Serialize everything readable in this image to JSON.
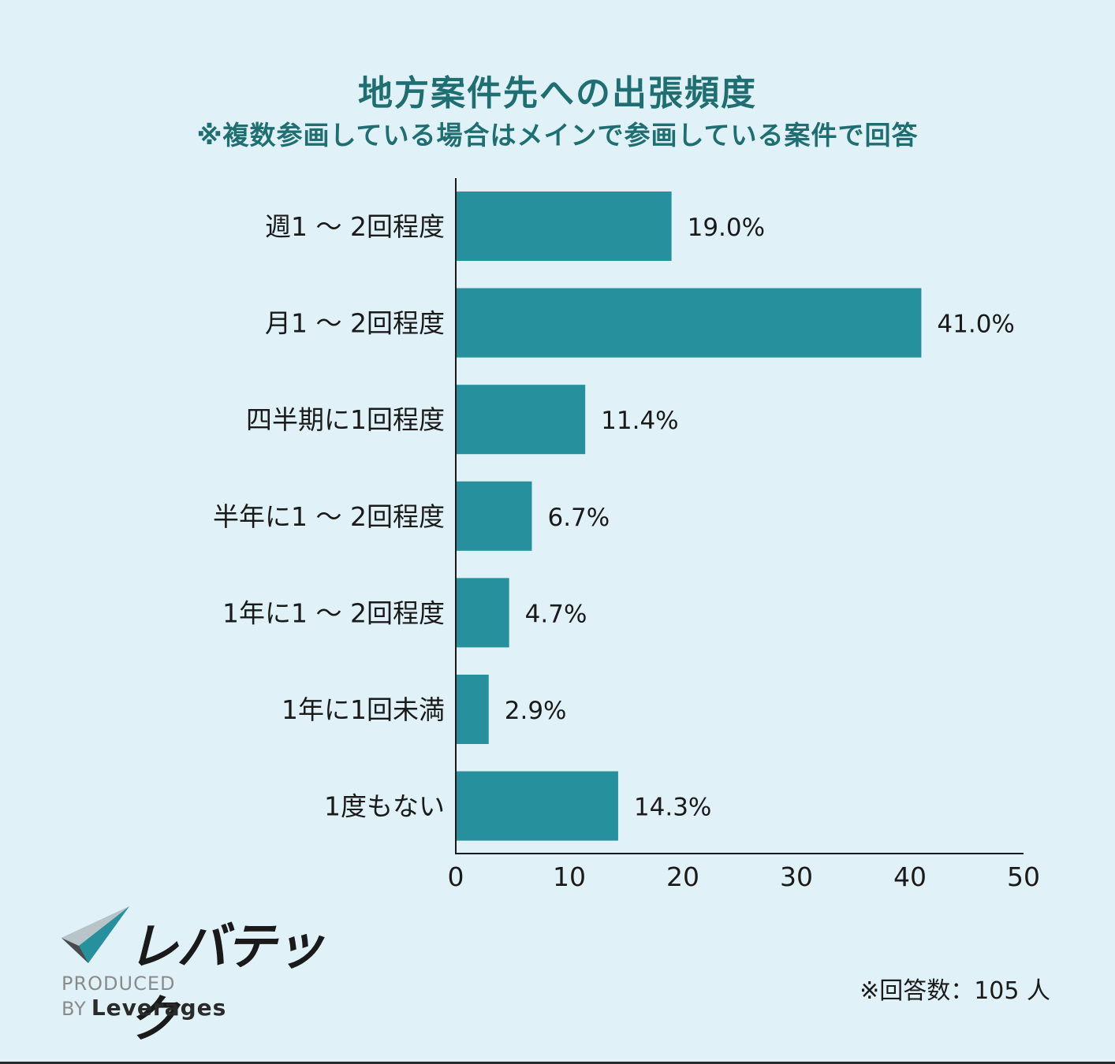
{
  "chart_data": {
    "type": "bar",
    "orientation": "horizontal",
    "title": "地方案件先への出張頻度",
    "subtitle": "※複数参画している場合はメインで参画している案件で回答",
    "categories": [
      "週1 ～ 2回程度",
      "月1 ～ 2回程度",
      "四半期に1回程度",
      "半年に1 ～ 2回程度",
      "1年に1 ～ 2回程度",
      "1年に1回未満",
      "1度もない"
    ],
    "values": [
      19.0,
      41.0,
      11.4,
      6.7,
      4.7,
      2.9,
      14.3
    ],
    "value_labels": [
      "19.0%",
      "41.0%",
      "11.4%",
      "6.7%",
      "4.7%",
      "2.9%",
      "14.3%"
    ],
    "xlim": [
      0,
      50
    ],
    "xticks": [
      0,
      10,
      20,
      30,
      40,
      50
    ],
    "bar_color": "#26909d",
    "grid": false
  },
  "logo": {
    "text": "レバテック",
    "produced_by": "PRODUCED BY",
    "brand": "Leverages"
  },
  "footnote": "※回答数：105 人"
}
